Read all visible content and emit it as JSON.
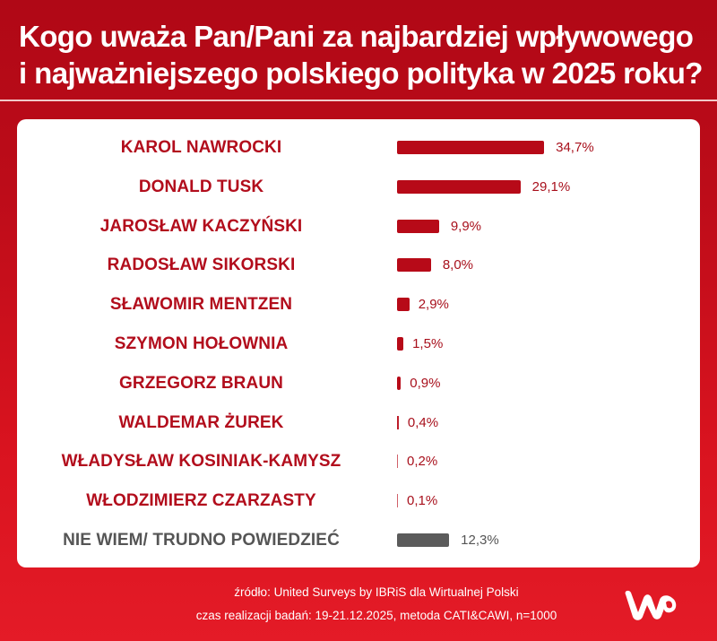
{
  "header": {
    "title_line1": "Kogo uważa Pan/Pani za najbardziej wpływowego",
    "title_line2": "i najważniejszego polskiego polityka w 2025 roku?"
  },
  "chart_data": {
    "type": "bar",
    "orientation": "horizontal",
    "title": "Kogo uważa Pan/Pani za najbardziej wpływowego i najważniejszego polskiego polityka w 2025 roku?",
    "xlabel": "",
    "ylabel": "",
    "unit": "%",
    "categories": [
      "KAROL NAWROCKI",
      "DONALD TUSK",
      "JAROSŁAW KACZYŃSKI",
      "RADOSŁAW SIKORSKI",
      "SŁAWOMIR MENTZEN",
      "SZYMON HOŁOWNIA",
      "GRZEGORZ BRAUN",
      "WALDEMAR ŻUREK",
      "WŁADYSŁAW KOSINIAK-KAMYSZ",
      "WŁODZIMIERZ CZARZASTY",
      "NIE WIEM/ TRUDNO POWIEDZIEĆ"
    ],
    "values": [
      34.7,
      29.1,
      9.9,
      8.0,
      2.9,
      1.5,
      0.9,
      0.4,
      0.2,
      0.1,
      12.3
    ],
    "value_labels": [
      "34,7%",
      "29,1%",
      "9,9%",
      "8,0%",
      "2,9%",
      "1,5%",
      "0,9%",
      "0,4%",
      "0,2%",
      "0,1%",
      "12,3%"
    ],
    "colors": {
      "politician_bar": "#b70a18",
      "undecided_bar": "#5b5b5b",
      "politician_label": "#b20d1c",
      "undecided_label": "#555555"
    },
    "grid": false,
    "legend": null
  },
  "rows": [
    {
      "label": "KAROL NAWROCKI",
      "value": 34.7,
      "value_label": "34,7%",
      "grey": false
    },
    {
      "label": "DONALD TUSK",
      "value": 29.1,
      "value_label": "29,1%",
      "grey": false
    },
    {
      "label": "JAROSŁAW KACZYŃSKI",
      "value": 9.9,
      "value_label": "9,9%",
      "grey": false
    },
    {
      "label": "RADOSŁAW SIKORSKI",
      "value": 8.0,
      "value_label": "8,0%",
      "grey": false
    },
    {
      "label": "SŁAWOMIR MENTZEN",
      "value": 2.9,
      "value_label": "2,9%",
      "grey": false
    },
    {
      "label": "SZYMON HOŁOWNIA",
      "value": 1.5,
      "value_label": "1,5%",
      "grey": false
    },
    {
      "label": "GRZEGORZ BRAUN",
      "value": 0.9,
      "value_label": "0,9%",
      "grey": false
    },
    {
      "label": "WALDEMAR ŻUREK",
      "value": 0.4,
      "value_label": "0,4%",
      "grey": false
    },
    {
      "label": "WŁADYSŁAW KOSINIAK-KAMYSZ",
      "value": 0.2,
      "value_label": "0,2%",
      "grey": false
    },
    {
      "label": "WŁODZIMIERZ CZARZASTY",
      "value": 0.1,
      "value_label": "0,1%",
      "grey": false
    },
    {
      "label": "NIE WIEM/ TRUDNO POWIEDZIEĆ",
      "value": 12.3,
      "value_label": "12,3%",
      "grey": true
    }
  ],
  "footer": {
    "source": "źródło: United Surveys by IBRiS dla Wirtualnej Polski",
    "method": "czas realizacji badań: 19-21.12.2025, metoda CATI&CAWI, n=1000",
    "logo": "wp-logo-icon"
  }
}
